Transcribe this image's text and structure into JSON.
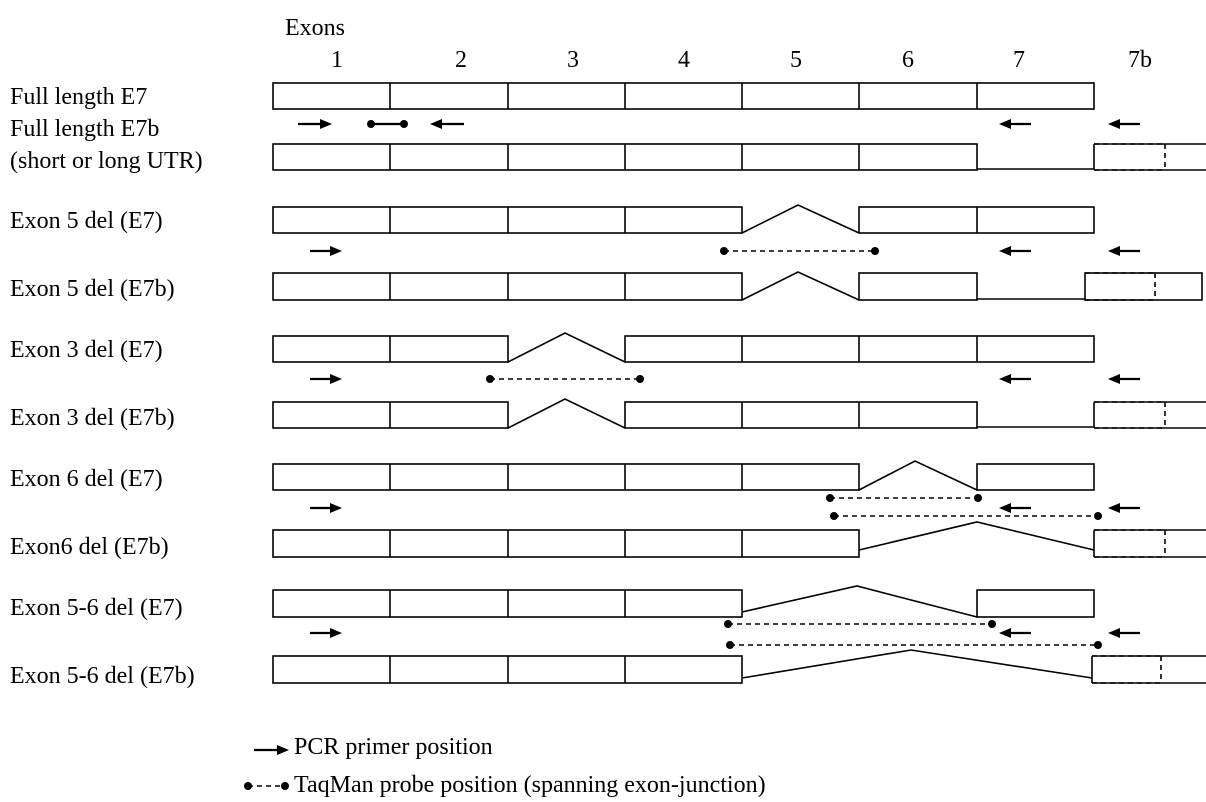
{
  "header": {
    "title": "Exons"
  },
  "exon_columns": [
    "1",
    "2",
    "3",
    "4",
    "5",
    "6",
    "7",
    "7b"
  ],
  "rows": [
    {
      "label": "Full length E7"
    },
    {
      "label": "Full length E7b"
    },
    {
      "label": "(short or long UTR)"
    },
    {
      "label": "Exon 5 del (E7)"
    },
    {
      "label": "Exon 5 del (E7b)"
    },
    {
      "label": "Exon 3 del (E7)"
    },
    {
      "label": "Exon 3 del (E7b)"
    },
    {
      "label": "Exon 6 del (E7)"
    },
    {
      "label": "Exon6 del (E7b)"
    },
    {
      "label": "Exon 5-6 del (E7)"
    },
    {
      "label": "Exon 5-6 del (E7b)"
    }
  ],
  "legend": {
    "primer": "PCR primer position",
    "probe": "TaqMan probe position (spanning exon-junction)"
  }
}
